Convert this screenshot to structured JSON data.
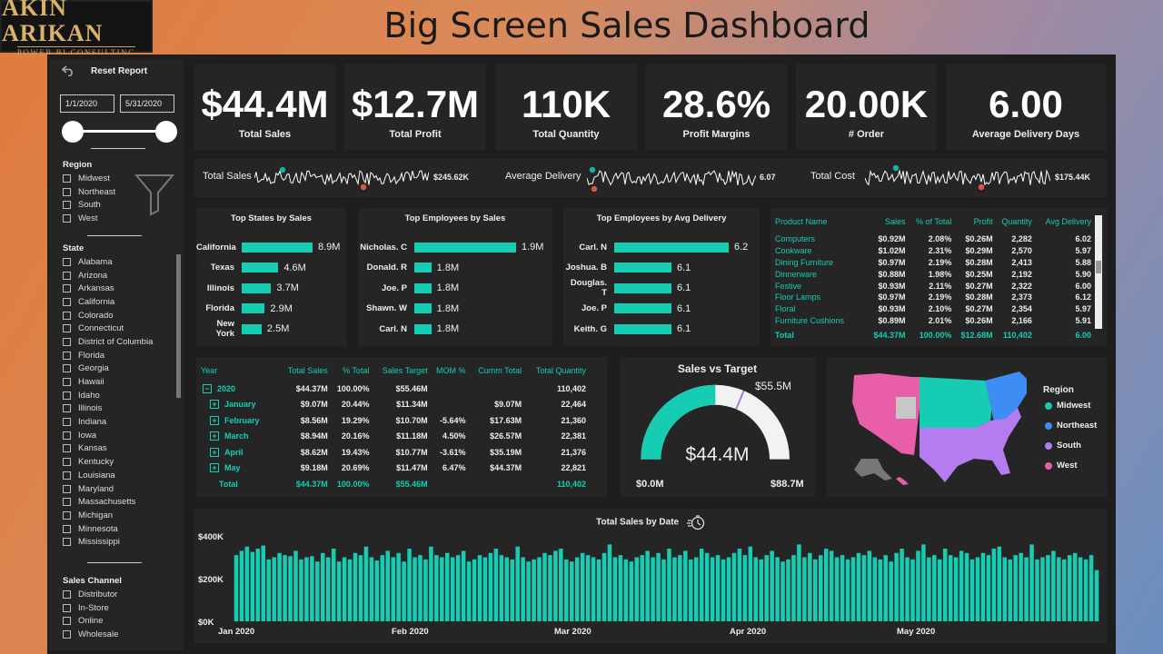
{
  "brand": {
    "line1": "AKIN ARIKAN",
    "line2": "POWER BI CONSULTING"
  },
  "title": "Big Screen Sales Dashboard",
  "colors": {
    "accent": "#16cdb3",
    "panel": "#252525",
    "midwest": "#16cdb3",
    "northeast": "#3d8df5",
    "south": "#b57cf0",
    "west": "#e85ea8"
  },
  "sidebar": {
    "reset_label": "Reset Report",
    "date_start": "1/1/2020",
    "date_end": "5/31/2020",
    "region_title": "Region",
    "regions": [
      "Midwest",
      "Northeast",
      "South",
      "West"
    ],
    "state_title": "State",
    "states": [
      "Alabama",
      "Arizona",
      "Arkansas",
      "California",
      "Colorado",
      "Connecticut",
      "District of Columbia",
      "Florida",
      "Georgia",
      "Hawaii",
      "Idaho",
      "Illinois",
      "Indiana",
      "Iowa",
      "Kansas",
      "Kentucky",
      "Louisiana",
      "Maryland",
      "Massachusetts",
      "Michigan",
      "Minnesota",
      "Mississippi"
    ],
    "channel_title": "Sales Channel",
    "channels": [
      "Distributor",
      "In-Store",
      "Online",
      "Wholesale"
    ]
  },
  "kpis": [
    {
      "value": "$44.4M",
      "label": "Total Sales"
    },
    {
      "value": "$12.7M",
      "label": "Total Profit"
    },
    {
      "value": "110K",
      "label": "Total Quantity"
    },
    {
      "value": "28.6%",
      "label": "Profit Margins"
    },
    {
      "value": "20.00K",
      "label": "# Order"
    },
    {
      "value": "6.00",
      "label": "Average Delivery Days"
    }
  ],
  "sparklines": [
    {
      "label": "Total Sales",
      "value": "$245.62K"
    },
    {
      "label": "Average Delivery",
      "value": "6.07"
    },
    {
      "label": "Total Cost",
      "value": "$175.44K"
    }
  ],
  "top_states": {
    "title": "Top States by Sales",
    "items": [
      {
        "name": "California",
        "value": 8.9,
        "label": "8.9M"
      },
      {
        "name": "Texas",
        "value": 4.6,
        "label": "4.6M"
      },
      {
        "name": "Illinois",
        "value": 3.7,
        "label": "3.7M"
      },
      {
        "name": "Florida",
        "value": 2.9,
        "label": "2.9M"
      },
      {
        "name": "New York",
        "value": 2.5,
        "label": "2.5M"
      }
    ]
  },
  "top_employees_sales": {
    "title": "Top Employees by Sales",
    "items": [
      {
        "name": "Nicholas. C",
        "value": 1.9,
        "label": "1.9M"
      },
      {
        "name": "Donald. R",
        "value": 1.8,
        "label": "1.8M"
      },
      {
        "name": "Joe. P",
        "value": 1.8,
        "label": "1.8M"
      },
      {
        "name": "Shawn. W",
        "value": 1.8,
        "label": "1.8M"
      },
      {
        "name": "Carl. N",
        "value": 1.8,
        "label": "1.8M"
      }
    ]
  },
  "top_employees_delivery": {
    "title": "Top Employees by Avg Delivery",
    "items": [
      {
        "name": "Carl. N",
        "value": 6.2,
        "label": "6.2"
      },
      {
        "name": "Joshua. B",
        "value": 6.1,
        "label": "6.1"
      },
      {
        "name": "Douglas. T",
        "value": 6.1,
        "label": "6.1"
      },
      {
        "name": "Joe. P",
        "value": 6.1,
        "label": "6.1"
      },
      {
        "name": "Keith. G",
        "value": 6.1,
        "label": "6.1"
      }
    ]
  },
  "product_table": {
    "headers": [
      "Product Name",
      "Sales",
      "% of Total",
      "Profit",
      "Quantity",
      "Avg Delivery"
    ],
    "rows": [
      [
        "Computers",
        "$0.92M",
        "2.08%",
        "$0.26M",
        "2,282",
        "6.02"
      ],
      [
        "Cookware",
        "$1.02M",
        "2.31%",
        "$0.29M",
        "2,570",
        "5.97"
      ],
      [
        "Dining Furniture",
        "$0.97M",
        "2.19%",
        "$0.28M",
        "2,413",
        "5.88"
      ],
      [
        "Dinnerware",
        "$0.88M",
        "1.98%",
        "$0.25M",
        "2,192",
        "5.90"
      ],
      [
        "Festive",
        "$0.93M",
        "2.11%",
        "$0.27M",
        "2,322",
        "6.00"
      ],
      [
        "Floor Lamps",
        "$0.97M",
        "2.19%",
        "$0.28M",
        "2,373",
        "6.12"
      ],
      [
        "Floral",
        "$0.93M",
        "2.10%",
        "$0.27M",
        "2,354",
        "5.97"
      ],
      [
        "Furniture Cushions",
        "$0.89M",
        "2.01%",
        "$0.26M",
        "2,166",
        "5.91"
      ]
    ],
    "total": [
      "Total",
      "$44.37M",
      "100.00%",
      "$12.68M",
      "110,402",
      "6.00"
    ]
  },
  "matrix": {
    "headers": [
      "Year",
      "Total Sales",
      "% Total",
      "Sales Target",
      "MOM %",
      "Cumm Total",
      "Total Quantity"
    ],
    "year_row": [
      "2020",
      "$44.37M",
      "100.00%",
      "$55.46M",
      "",
      "",
      "110,402"
    ],
    "rows": [
      [
        "January",
        "$9.07M",
        "20.44%",
        "$11.34M",
        "",
        "$9.07M",
        "22,464"
      ],
      [
        "February",
        "$8.56M",
        "19.29%",
        "$10.70M",
        "-5.64%",
        "$17.63M",
        "21,360"
      ],
      [
        "March",
        "$8.94M",
        "20.16%",
        "$11.18M",
        "4.50%",
        "$26.57M",
        "22,381"
      ],
      [
        "April",
        "$8.62M",
        "19.43%",
        "$10.77M",
        "-3.61%",
        "$35.19M",
        "21,376"
      ],
      [
        "May",
        "$9.18M",
        "20.69%",
        "$11.47M",
        "6.47%",
        "$44.37M",
        "22,821"
      ]
    ],
    "total": [
      "Total",
      "$44.37M",
      "100.00%",
      "$55.46M",
      "",
      "",
      "110,402"
    ],
    "expand_glyph": "+",
    "collapse_glyph": "−"
  },
  "gauge": {
    "title": "Sales vs Target",
    "value": 44.4,
    "target": 55.5,
    "max": 88.7,
    "value_label": "$44.4M",
    "target_label": "$55.5M",
    "min_label": "$0.0M",
    "max_label": "$88.7M"
  },
  "map": {
    "legend_title": "Region",
    "legend": [
      "Midwest",
      "Northeast",
      "South",
      "West"
    ]
  },
  "chart_data": {
    "type": "bar",
    "title": "Total Sales by Date",
    "ylim": [
      0,
      400000
    ],
    "yticks": [
      "$0K",
      "$200K",
      "$400K"
    ],
    "xticks": [
      "Jan 2020",
      "Feb 2020",
      "Mar 2020",
      "Apr 2020",
      "May 2020"
    ],
    "values": [
      310,
      330,
      350,
      325,
      340,
      355,
      290,
      300,
      320,
      310,
      305,
      330,
      290,
      300,
      305,
      280,
      320,
      300,
      340,
      280,
      300,
      290,
      320,
      310,
      350,
      300,
      285,
      310,
      330,
      300,
      320,
      280,
      340,
      300,
      310,
      290,
      350,
      310,
      300,
      320,
      300,
      310,
      330,
      280,
      290,
      310,
      300,
      320,
      340,
      310,
      300,
      290,
      350,
      300,
      280,
      290,
      300,
      320,
      310,
      330,
      340,
      290,
      280,
      300,
      320,
      310,
      300,
      290,
      320,
      360,
      300,
      310,
      290,
      280,
      300,
      310,
      330,
      300,
      320,
      290,
      340,
      300,
      310,
      330,
      290,
      300,
      340,
      320,
      300,
      310,
      290,
      300,
      320,
      340,
      310,
      350,
      300,
      290,
      310,
      330,
      300,
      280,
      290,
      310,
      360,
      300,
      320,
      290,
      310,
      340,
      330,
      300,
      310,
      290,
      300,
      320,
      310,
      330,
      300,
      290,
      310,
      280,
      320,
      340,
      300,
      290,
      330,
      360,
      300,
      310,
      290,
      340,
      310,
      300,
      330,
      320,
      290,
      300,
      320,
      310,
      340,
      350,
      300,
      290,
      310,
      320,
      300,
      360,
      290,
      300,
      310,
      330,
      300,
      290,
      310,
      320,
      300,
      290,
      310,
      240
    ]
  }
}
